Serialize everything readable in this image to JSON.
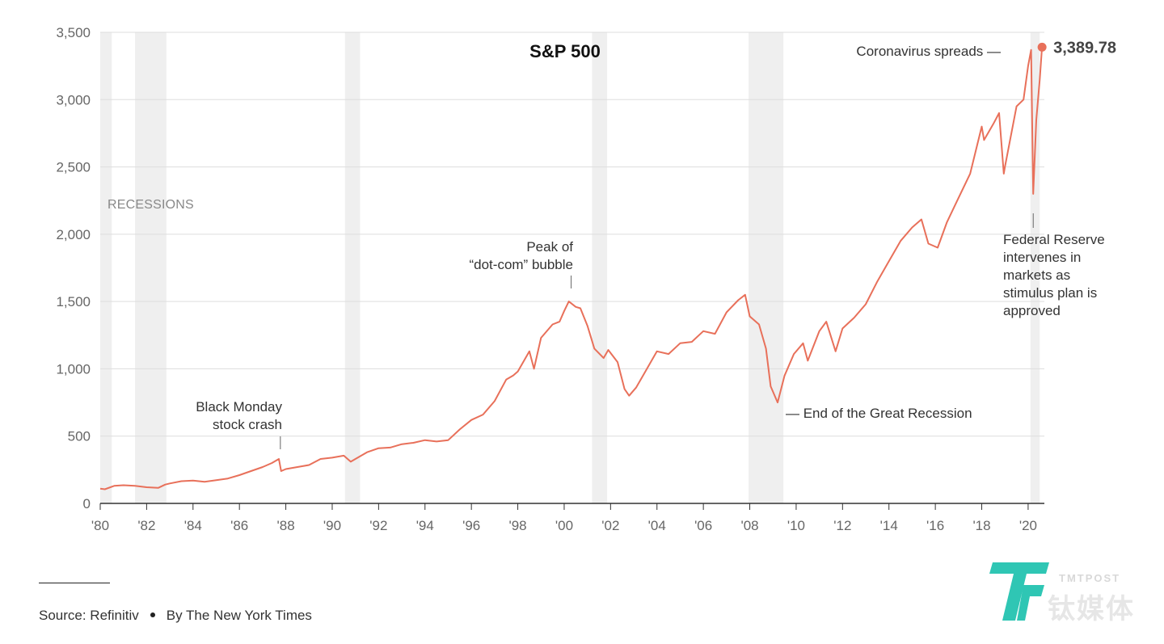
{
  "chart_data": {
    "type": "line",
    "title": "S&P 500",
    "xlabel": "",
    "ylabel": "",
    "xlim": [
      1980,
      2020.7
    ],
    "ylim": [
      0,
      3500
    ],
    "x_ticks": [
      1980,
      1982,
      1984,
      1986,
      1988,
      1990,
      1992,
      1994,
      1996,
      1998,
      2000,
      2002,
      2004,
      2006,
      2008,
      2010,
      2012,
      2014,
      2016,
      2018,
      2020
    ],
    "x_tick_labels": [
      "'80",
      "'82",
      "'84",
      "'86",
      "'88",
      "'90",
      "'92",
      "'94",
      "'96",
      "'98",
      "'00",
      "'02",
      "'04",
      "'06",
      "'08",
      "'10",
      "'12",
      "'14",
      "'16",
      "'18",
      "'20"
    ],
    "y_ticks": [
      0,
      500,
      1000,
      1500,
      2000,
      2500,
      3000,
      3500
    ],
    "y_tick_labels": [
      "0",
      "500",
      "1,000",
      "1,500",
      "2,000",
      "2,500",
      "3,000",
      "3,500"
    ],
    "grid": true,
    "line_color": "#e8705a",
    "recession_color": "#efefef",
    "recession_label": "RECESSIONS",
    "recessions": [
      {
        "start": 1980.0,
        "end": 1980.5
      },
      {
        "start": 1981.5,
        "end": 1982.85
      },
      {
        "start": 1990.55,
        "end": 1991.2
      },
      {
        "start": 2001.2,
        "end": 2001.85
      },
      {
        "start": 2007.95,
        "end": 2009.45
      },
      {
        "start": 2020.1,
        "end": 2020.5
      }
    ],
    "series": [
      {
        "name": "S&P 500",
        "x": [
          1980.0,
          1980.2,
          1980.6,
          1981.0,
          1981.5,
          1982.0,
          1982.5,
          1982.8,
          1983.0,
          1983.5,
          1984.0,
          1984.5,
          1985.0,
          1985.5,
          1986.0,
          1986.5,
          1987.0,
          1987.4,
          1987.7,
          1987.8,
          1988.0,
          1988.5,
          1989.0,
          1989.5,
          1990.0,
          1990.5,
          1990.8,
          1991.0,
          1991.5,
          1992.0,
          1992.5,
          1993.0,
          1993.5,
          1994.0,
          1994.5,
          1995.0,
          1995.5,
          1996.0,
          1996.5,
          1997.0,
          1997.5,
          1997.8,
          1998.0,
          1998.5,
          1998.7,
          1999.0,
          1999.5,
          1999.8,
          2000.0,
          2000.2,
          2000.5,
          2000.7,
          2001.0,
          2001.3,
          2001.7,
          2001.9,
          2002.3,
          2002.6,
          2002.8,
          2003.1,
          2003.5,
          2004.0,
          2004.5,
          2005.0,
          2005.5,
          2006.0,
          2006.5,
          2007.0,
          2007.5,
          2007.8,
          2008.0,
          2008.4,
          2008.7,
          2008.9,
          2009.2,
          2009.5,
          2009.9,
          2010.3,
          2010.5,
          2011.0,
          2011.3,
          2011.7,
          2012.0,
          2012.5,
          2013.0,
          2013.5,
          2014.0,
          2014.5,
          2015.0,
          2015.4,
          2015.7,
          2016.1,
          2016.5,
          2017.0,
          2017.5,
          2018.0,
          2018.1,
          2018.5,
          2018.75,
          2018.95,
          2019.0,
          2019.5,
          2019.8,
          2020.0,
          2020.13,
          2020.22,
          2020.35,
          2020.5,
          2020.6
        ],
        "values": [
          110,
          105,
          130,
          135,
          130,
          120,
          115,
          140,
          148,
          165,
          170,
          160,
          172,
          185,
          210,
          240,
          270,
          300,
          330,
          240,
          255,
          270,
          285,
          330,
          340,
          355,
          310,
          330,
          380,
          410,
          415,
          440,
          450,
          470,
          460,
          470,
          550,
          620,
          660,
          760,
          920,
          950,
          980,
          1130,
          1000,
          1230,
          1330,
          1350,
          1430,
          1500,
          1460,
          1450,
          1320,
          1150,
          1080,
          1140,
          1050,
          850,
          800,
          860,
          980,
          1130,
          1110,
          1190,
          1200,
          1280,
          1260,
          1420,
          1510,
          1550,
          1390,
          1330,
          1150,
          870,
          750,
          950,
          1110,
          1190,
          1060,
          1280,
          1350,
          1130,
          1300,
          1380,
          1480,
          1650,
          1800,
          1950,
          2050,
          2110,
          1930,
          1900,
          2090,
          2270,
          2450,
          2800,
          2700,
          2820,
          2900,
          2450,
          2500,
          2950,
          3000,
          3250,
          3370,
          2300,
          2850,
          3150,
          3389.78
        ]
      }
    ],
    "last_value_label": "3,389.78",
    "annotations": [
      {
        "name": "black-monday",
        "x": 1987.8,
        "lines": [
          "Black Monday",
          "stock crash"
        ]
      },
      {
        "name": "dot-com-peak",
        "x": 2000.3,
        "lines": [
          "Peak of",
          "“dot-com” bubble"
        ]
      },
      {
        "name": "great-recession-end",
        "x": 2009.2,
        "lines": [
          "— End of the Great Recession"
        ]
      },
      {
        "name": "coronavirus",
        "x": 2020.15,
        "lines": [
          "Coronavirus spreads —"
        ]
      },
      {
        "name": "fed-reserve",
        "x": 2020.22,
        "lines": [
          "Federal Reserve",
          "intervenes in",
          "markets as",
          "stimulus plan is",
          "approved"
        ]
      }
    ]
  },
  "footer": {
    "source": "Source: Refinitiv",
    "byline": "By The New York Times"
  },
  "watermark": {
    "latin": "TMTPOST",
    "cjk": "钛媒体"
  }
}
